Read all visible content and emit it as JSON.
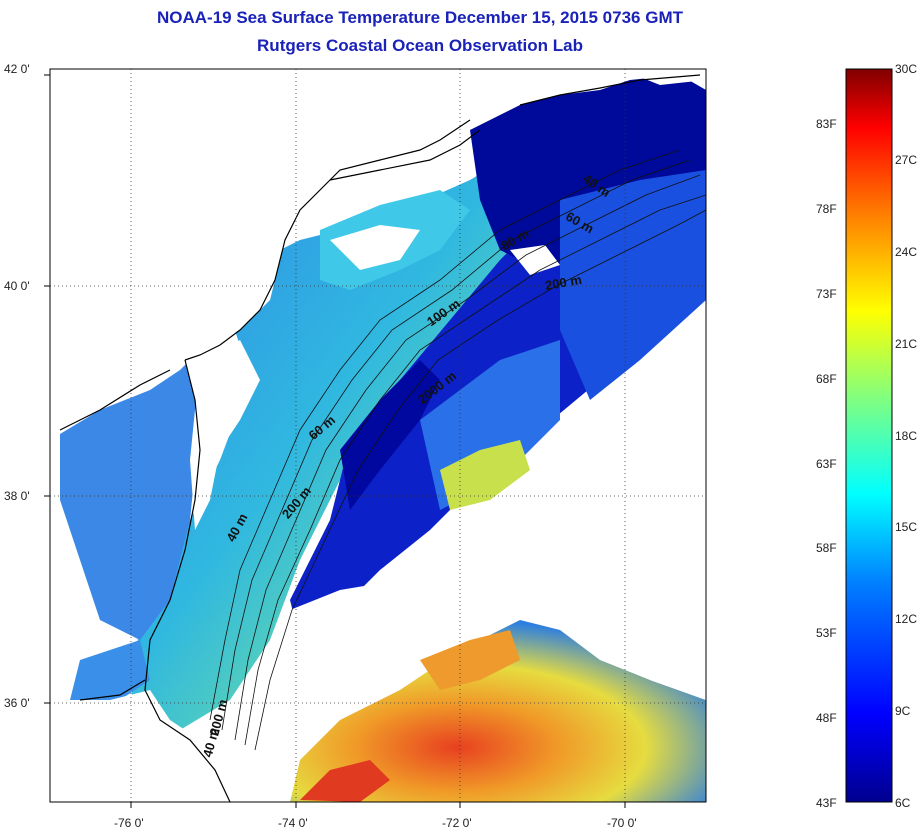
{
  "title": "NOAA-19 Sea Surface Temperature December 15, 2015 0736 GMT",
  "subtitle": "Rutgers Coastal Ocean Observation Lab",
  "lat_ticks": [
    "42 0'",
    "40 0'",
    "38 0'",
    "36 0'"
  ],
  "lon_ticks": [
    "-76 0'",
    "-74 0'",
    "-72 0'",
    "-70 0'"
  ],
  "contour_labels": [
    "40 m",
    "60 m",
    "100 m",
    "200 m",
    "2000 m",
    "40 m",
    "80 m",
    "60 m",
    "200 m",
    "40 m",
    "200 m"
  ],
  "colorbar": {
    "celsius": [
      "30C",
      "27C",
      "24C",
      "21C",
      "18C",
      "15C",
      "12C",
      "9C",
      "6C"
    ],
    "fahrenheit": [
      "83F",
      "78F",
      "73F",
      "68F",
      "63F",
      "58F",
      "53F",
      "48F",
      "43F"
    ]
  },
  "colors": {
    "title": "#1a22b8",
    "cold": "#0000a0",
    "warm": "#d8201c",
    "land": "#ffffff"
  }
}
